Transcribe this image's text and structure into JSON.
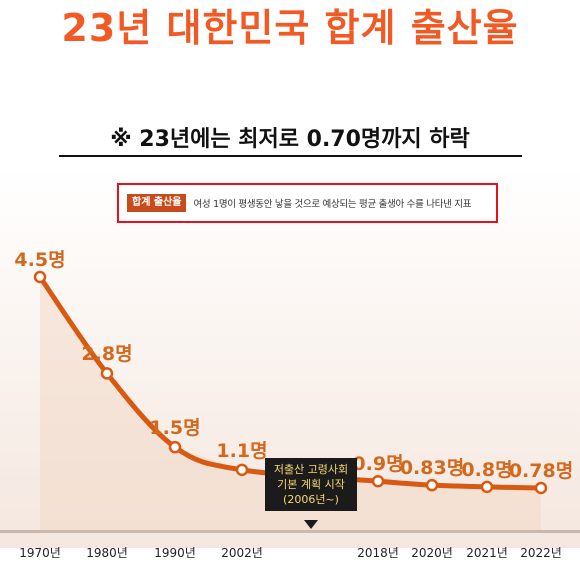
{
  "title": "23년 대한민국 합계 출산율",
  "subtitle": "※ 23년에는 최저로 0.70명까지 하락",
  "definition": {
    "tag": "합계 출산율",
    "text": "여성 1명이 평생동안 낳을 것으로 예상되는 평균 출생아 수를 나타낸 지표"
  },
  "callout": {
    "lines": [
      "저출산 고령사회",
      "기본 계획 시작",
      "(2006년~)"
    ]
  },
  "colors": {
    "title": "#f15a24",
    "line": "#d85a12",
    "labels": "#d2691e",
    "definition_border": "#e8101a"
  },
  "chart_data": {
    "type": "line",
    "title": "23년 대한민국 합계 출산율",
    "xlabel": "",
    "ylabel": "",
    "categories": [
      "1970년",
      "1980년",
      "1990년",
      "2002년",
      "2018년",
      "2020년",
      "2021년",
      "2022년"
    ],
    "values": [
      4.5,
      2.8,
      1.5,
      1.1,
      0.9,
      0.83,
      0.8,
      0.78
    ],
    "data_labels": [
      "4.5명",
      "2.8명",
      "1.5명",
      "1.1명",
      "0.9명",
      "0.83명",
      "0.8명",
      "0.78명"
    ],
    "annotation": "저출산 고령사회 기본 계획 시작 (2006년~)",
    "grid": false,
    "legend": "none"
  }
}
